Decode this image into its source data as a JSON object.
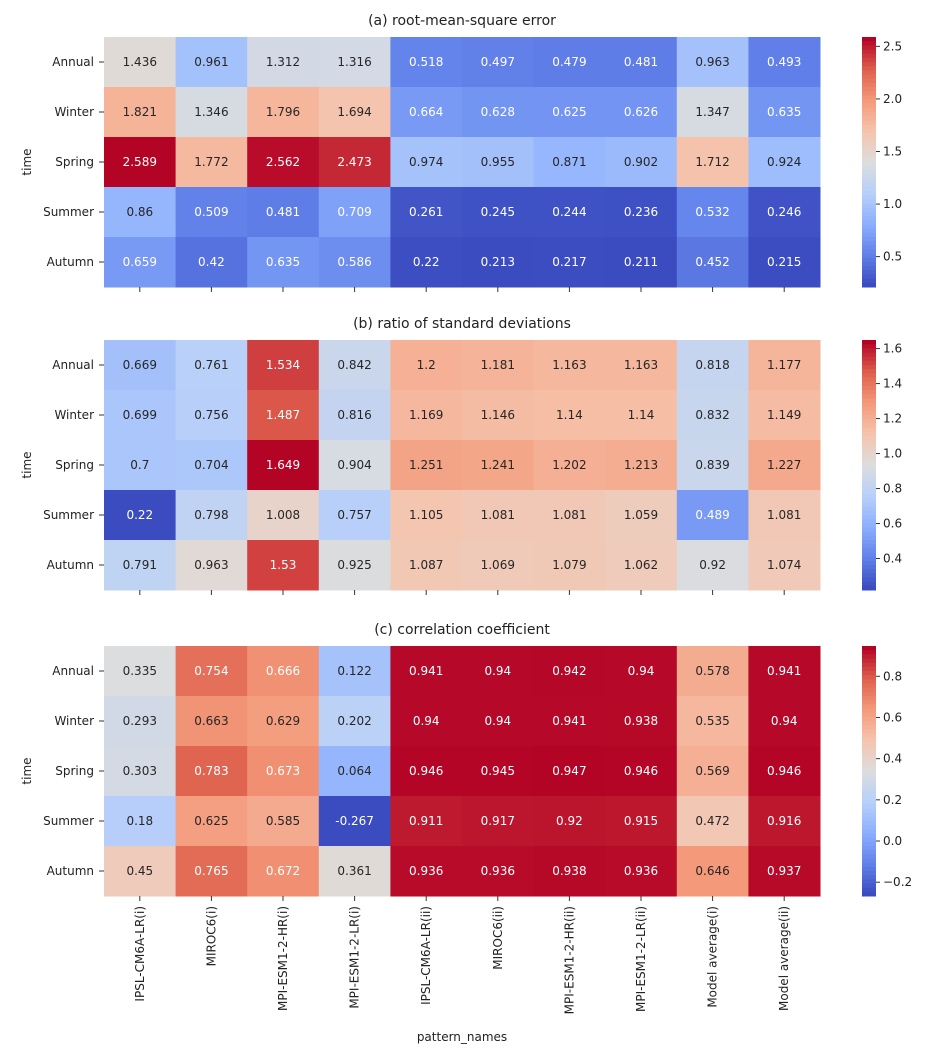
{
  "chart_data": [
    {
      "type": "heatmap",
      "title": "(a) root-mean-square error",
      "ylabel": "time",
      "xlabel": "",
      "rows": [
        "Annual",
        "Winter",
        "Spring",
        "Summer",
        "Autumn"
      ],
      "columns": [
        "IPSL-CM6A-LR(i)",
        "MIROC6(i)",
        "MPI-ESM1-2-HR(i)",
        "MPI-ESM1-2-LR(i)",
        "IPSL-CM6A-LR(ii)",
        "MIROC6(ii)",
        "MPI-ESM1-2-HR(ii)",
        "MPI-ESM1-2-LR(ii)",
        "Model average(i)",
        "Model average(ii)"
      ],
      "values": [
        [
          1.436,
          0.961,
          1.312,
          1.316,
          0.518,
          0.497,
          0.479,
          0.481,
          0.963,
          0.493
        ],
        [
          1.821,
          1.346,
          1.796,
          1.694,
          0.664,
          0.628,
          0.625,
          0.626,
          1.347,
          0.635
        ],
        [
          2.589,
          1.772,
          2.562,
          2.473,
          0.974,
          0.955,
          0.871,
          0.902,
          1.712,
          0.924
        ],
        [
          0.86,
          0.509,
          0.481,
          0.709,
          0.261,
          0.245,
          0.244,
          0.236,
          0.532,
          0.246
        ],
        [
          0.659,
          0.42,
          0.635,
          0.586,
          0.22,
          0.213,
          0.217,
          0.211,
          0.452,
          0.215
        ]
      ],
      "colormap": "coolwarm",
      "vmin": 0.211,
      "vmax": 2.589,
      "colorbar_ticks": [
        0.5,
        1.0,
        1.5,
        2.0,
        2.5
      ]
    },
    {
      "type": "heatmap",
      "title": "(b) ratio of standard deviations",
      "ylabel": "time",
      "xlabel": "",
      "rows": [
        "Annual",
        "Winter",
        "Spring",
        "Summer",
        "Autumn"
      ],
      "columns": [
        "IPSL-CM6A-LR(i)",
        "MIROC6(i)",
        "MPI-ESM1-2-HR(i)",
        "MPI-ESM1-2-LR(i)",
        "IPSL-CM6A-LR(ii)",
        "MIROC6(ii)",
        "MPI-ESM1-2-HR(ii)",
        "MPI-ESM1-2-LR(ii)",
        "Model average(i)",
        "Model average(ii)"
      ],
      "values": [
        [
          0.669,
          0.761,
          1.534,
          0.842,
          1.2,
          1.181,
          1.163,
          1.163,
          0.818,
          1.177
        ],
        [
          0.699,
          0.756,
          1.487,
          0.816,
          1.169,
          1.146,
          1.14,
          1.14,
          0.832,
          1.149
        ],
        [
          0.7,
          0.704,
          1.649,
          0.904,
          1.251,
          1.241,
          1.202,
          1.213,
          0.839,
          1.227
        ],
        [
          0.22,
          0.798,
          1.008,
          0.757,
          1.105,
          1.081,
          1.081,
          1.059,
          0.489,
          1.081
        ],
        [
          0.791,
          0.963,
          1.53,
          0.925,
          1.087,
          1.069,
          1.079,
          1.062,
          0.92,
          1.074
        ]
      ],
      "colormap": "coolwarm",
      "vmin": 0.22,
      "vmax": 1.649,
      "colorbar_ticks": [
        0.4,
        0.6,
        0.8,
        1.0,
        1.2,
        1.4,
        1.6
      ]
    },
    {
      "type": "heatmap",
      "title": "(c) correlation coefficient",
      "ylabel": "time",
      "xlabel": "pattern_names",
      "rows": [
        "Annual",
        "Winter",
        "Spring",
        "Summer",
        "Autumn"
      ],
      "columns": [
        "IPSL-CM6A-LR(i)",
        "MIROC6(i)",
        "MPI-ESM1-2-HR(i)",
        "MPI-ESM1-2-LR(i)",
        "IPSL-CM6A-LR(ii)",
        "MIROC6(ii)",
        "MPI-ESM1-2-HR(ii)",
        "MPI-ESM1-2-LR(ii)",
        "Model average(i)",
        "Model average(ii)"
      ],
      "values": [
        [
          0.335,
          0.754,
          0.666,
          0.122,
          0.941,
          0.94,
          0.942,
          0.94,
          0.578,
          0.941
        ],
        [
          0.293,
          0.663,
          0.629,
          0.202,
          0.94,
          0.94,
          0.941,
          0.938,
          0.535,
          0.94
        ],
        [
          0.303,
          0.783,
          0.673,
          0.064,
          0.946,
          0.945,
          0.947,
          0.946,
          0.569,
          0.946
        ],
        [
          0.18,
          0.625,
          0.585,
          -0.267,
          0.911,
          0.917,
          0.92,
          0.915,
          0.472,
          0.916
        ],
        [
          0.45,
          0.765,
          0.672,
          0.361,
          0.936,
          0.936,
          0.938,
          0.936,
          0.646,
          0.937
        ]
      ],
      "colormap": "coolwarm",
      "vmin": -0.267,
      "vmax": 0.947,
      "colorbar_ticks": [
        -0.2,
        0.0,
        0.2,
        0.4,
        0.6,
        0.8
      ]
    }
  ]
}
